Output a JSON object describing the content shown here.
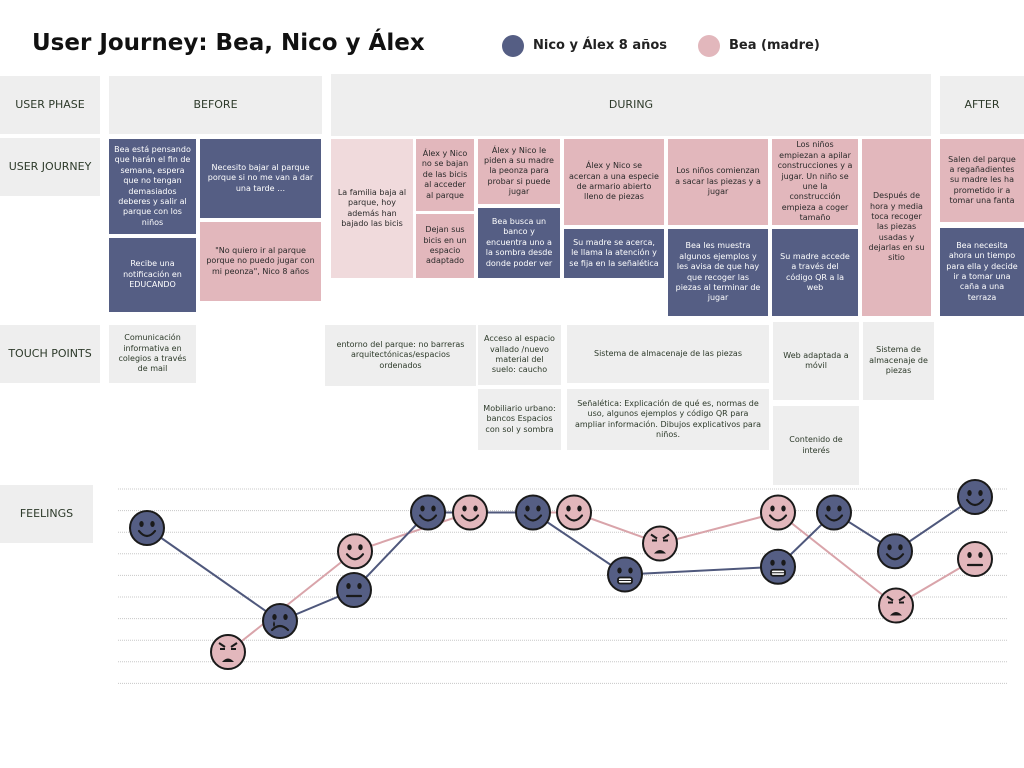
{
  "title": "User Journey: Bea, Nico y Álex",
  "legend": [
    {
      "label": "Nico y Álex 8 años",
      "color": "#555e84"
    },
    {
      "label": "Bea (madre)",
      "color": "#e2b7bc"
    }
  ],
  "row_labels": {
    "user_phase": "USER PHASE",
    "user_journey": "USER JOURNEY",
    "touch_points": "TOUCH POINTS",
    "feelings": "FEELINGS"
  },
  "phases": {
    "before": "BEFORE",
    "during": "DURING",
    "after": "AFTER"
  },
  "journey": {
    "c1a": "Bea está pensando que harán el fin de semana, espera que no tengan demasiados deberes y salir al parque con los niños",
    "c1b": "Recibe una notificación en EDUCANDO",
    "c2a": "Necesito bajar al parque porque si no me van a dar una tarde …",
    "c2b": "\"No quiero ir al parque porque no puedo jugar con mi peonza\", Nico 8 años",
    "c3": "La familia baja al parque, hoy además han bajado las bicis",
    "c4a": "Álex y Nico no se bajan de las bicis al acceder al parque",
    "c4b": "Dejan sus bicis en un espacio adaptado",
    "c5a": "Álex y Nico le piden a su madre la peonza para probar si puede jugar",
    "c5b": "Bea busca un banco y encuentra uno a la sombra desde donde poder ver",
    "c6a": "Álex y Nico se acercan a una especie de armario abierto lleno de piezas",
    "c6b": "Su madre se acerca, le llama la atención y se fija en la señalética",
    "c7a": "Los niños comienzan a sacar las piezas y a jugar",
    "c7b": "Bea les muestra algunos ejemplos y les avisa de que  hay que recoger las piezas al terminar de jugar",
    "c8a": "Los niños empiezan a apilar construcciones  y a jugar. Un niño se une la construcción empieza a coger tamaño",
    "c8b": "Su madre accede a través del código QR a la web",
    "c9": "Después de hora y media toca recoger las piezas usadas y dejarlas en su sitio",
    "c10a": "Salen del parque a regañadientes su madre les ha prometido ir a tomar una fanta",
    "c10b": "Bea necesita ahora un tiempo para ella y decide ir a tomar una caña a una terraza"
  },
  "touch": {
    "t1": "Comunicación informativa en colegios a través de mail",
    "t2": "entorno del parque: no barreras arquitectónicas/espacios ordenados",
    "t3": "Acceso al espacio vallado /nuevo material del suelo: caucho",
    "t4": "Mobiliario urbano: bancos Espacios con sol y sombra",
    "t5": "Sistema de almacenaje de las piezas",
    "t6": "Señalética: Explicación de qué es, normas de uso, algunos ejemplos y código QR para ampliar información. Dibujos explicativos para niños.",
    "t7": "Web adaptada a móvil",
    "t8": "Contenido de interés",
    "t9": "Sistema de almacenaje de piezas"
  },
  "chart_data": {
    "type": "line",
    "title": "",
    "xlabel": "",
    "ylabel": "",
    "series": [
      {
        "name": "Nico y Álex 8 años",
        "color": "#555e84",
        "points": [
          {
            "stage": 1,
            "level": 8,
            "mood": "smile"
          },
          {
            "stage": 2,
            "level": 2,
            "mood": "cry"
          },
          {
            "stage": 3,
            "level": 4,
            "mood": "neutral"
          },
          {
            "stage": 4,
            "level": 9,
            "mood": "smile"
          },
          {
            "stage": 5,
            "level": 9,
            "mood": "smile"
          },
          {
            "stage": 6,
            "level": 5,
            "mood": "grimace"
          },
          {
            "stage": 7,
            "level": 5.5,
            "mood": "grimace"
          },
          {
            "stage": 8,
            "level": 9,
            "mood": "smile"
          },
          {
            "stage": 9,
            "level": 6.5,
            "mood": "smile"
          },
          {
            "stage": 10,
            "level": 10,
            "mood": "smile"
          }
        ]
      },
      {
        "name": "Bea (madre)",
        "color": "#e2b7bc",
        "points": [
          {
            "stage": 1,
            "level": 0,
            "mood": "angry"
          },
          {
            "stage": 2,
            "level": 6.5,
            "mood": "smile"
          },
          {
            "stage": 3,
            "level": 9,
            "mood": "smile"
          },
          {
            "stage": 4,
            "level": 9,
            "mood": "smile"
          },
          {
            "stage": 5,
            "level": 7,
            "mood": "angry"
          },
          {
            "stage": 6,
            "level": 9,
            "mood": "smile"
          },
          {
            "stage": 7,
            "level": 3,
            "mood": "angry"
          },
          {
            "stage": 8,
            "level": 6,
            "mood": "neutral"
          }
        ]
      }
    ]
  }
}
